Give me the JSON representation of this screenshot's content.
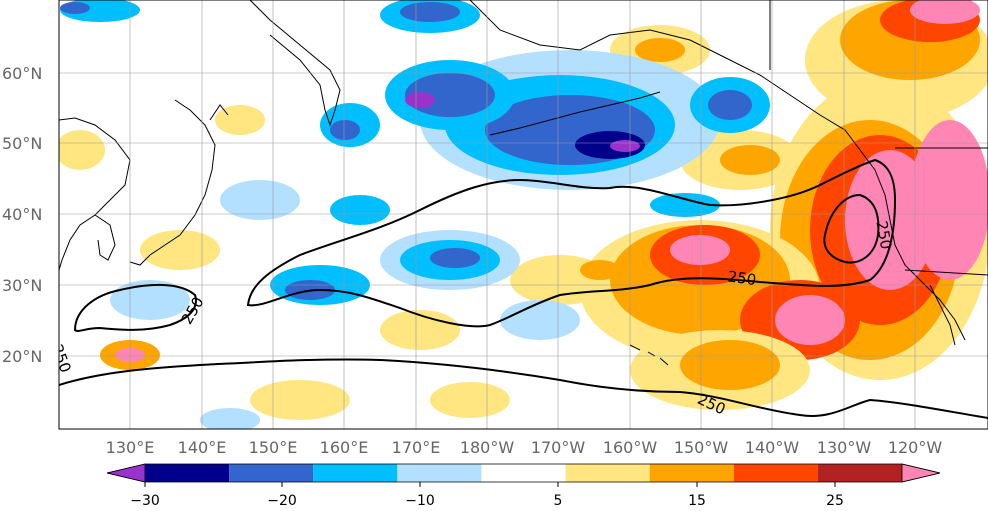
{
  "map": {
    "lat_labels": [
      "60°N",
      "50°N",
      "40°N",
      "30°N",
      "20°N"
    ],
    "lon_labels": [
      "130°E",
      "140°E",
      "150°E",
      "160°E",
      "170°E",
      "180°W",
      "170°W",
      "160°W",
      "150°W",
      "140°W",
      "130°W",
      "120°W"
    ],
    "contour_labels": [
      "250",
      "250",
      "250",
      "250",
      "250"
    ]
  },
  "colorbar": {
    "tick_labels": [
      "−30",
      "−20",
      "−10",
      "5",
      "15",
      "25"
    ],
    "colors": [
      "#9933cc",
      "#00008b",
      "#3366cc",
      "#00bfff",
      "#b3e0ff",
      "#ffffff",
      "#ffe680",
      "#ffa500",
      "#ff4500",
      "#b22222",
      "#ff85b5"
    ]
  }
}
